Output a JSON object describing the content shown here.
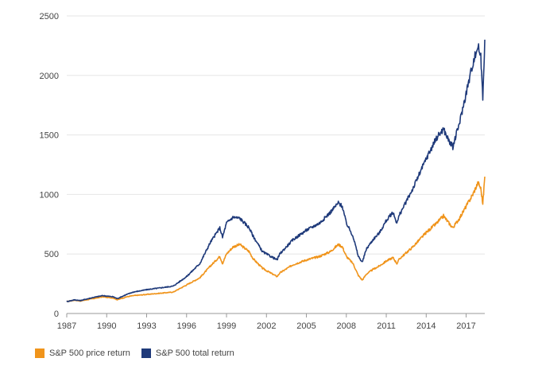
{
  "chart_data": {
    "type": "line",
    "title": "",
    "xlabel": "",
    "ylabel": "",
    "xlim": [
      1987,
      2018.4
    ],
    "ylim": [
      0,
      2500
    ],
    "grid": true,
    "legend_position": "bottom-left",
    "x_ticks": [
      "1987",
      "1990",
      "1993",
      "1996",
      "1999",
      "2002",
      "2005",
      "2008",
      "2011",
      "2014",
      "2017"
    ],
    "y_ticks": [
      "0",
      "500",
      "1000",
      "1500",
      "2000",
      "2500"
    ],
    "series": [
      {
        "name": "S&P 500 price return",
        "color": "#f0941b",
        "x": [
          1987.0,
          1987.6,
          1988.0,
          1989.0,
          1989.7,
          1990.5,
          1990.8,
          1991.5,
          1992.0,
          1993.0,
          1994.0,
          1995.0,
          1996.0,
          1997.0,
          1997.8,
          1998.5,
          1998.7,
          1999.0,
          1999.5,
          2000.0,
          2000.7,
          2001.0,
          2001.7,
          2002.0,
          2002.8,
          2003.0,
          2004.0,
          2005.0,
          2006.0,
          2006.8,
          2007.4,
          2007.7,
          2008.0,
          2008.5,
          2008.9,
          2009.2,
          2009.5,
          2010.0,
          2010.5,
          2011.0,
          2011.5,
          2011.8,
          2012.0,
          2013.0,
          2014.0,
          2014.8,
          2015.3,
          2015.7,
          2016.0,
          2016.5,
          2017.0,
          2017.5,
          2017.9,
          2018.1,
          2018.25,
          2018.4
        ],
        "y": [
          100,
          112,
          105,
          125,
          140,
          130,
          115,
          140,
          150,
          160,
          170,
          180,
          240,
          300,
          400,
          480,
          420,
          500,
          560,
          580,
          520,
          460,
          380,
          360,
          310,
          340,
          410,
          450,
          480,
          520,
          580,
          560,
          480,
          420,
          320,
          280,
          330,
          370,
          400,
          440,
          470,
          420,
          460,
          560,
          680,
          760,
          820,
          760,
          720,
          800,
          900,
          1000,
          1100,
          1050,
          920,
          1150
        ]
      },
      {
        "name": "S&P 500 total return",
        "color": "#1f3a7a",
        "x": [
          1987.0,
          1987.6,
          1988.0,
          1989.0,
          1989.7,
          1990.5,
          1990.8,
          1991.5,
          1992.0,
          1993.0,
          1994.0,
          1995.0,
          1996.0,
          1997.0,
          1997.8,
          1998.5,
          1998.7,
          1999.0,
          1999.5,
          2000.0,
          2000.7,
          2001.0,
          2001.7,
          2002.0,
          2002.8,
          2003.0,
          2004.0,
          2005.0,
          2006.0,
          2006.8,
          2007.4,
          2007.7,
          2008.0,
          2008.5,
          2008.9,
          2009.2,
          2009.5,
          2010.0,
          2010.5,
          2011.0,
          2011.5,
          2011.8,
          2012.0,
          2013.0,
          2014.0,
          2014.8,
          2015.3,
          2015.7,
          2016.0,
          2016.5,
          2017.0,
          2017.5,
          2017.9,
          2018.1,
          2018.25,
          2018.4
        ],
        "y": [
          100,
          115,
          108,
          135,
          150,
          140,
          125,
          160,
          180,
          200,
          215,
          230,
          310,
          420,
          600,
          720,
          640,
          760,
          810,
          800,
          720,
          650,
          520,
          500,
          450,
          500,
          620,
          700,
          760,
          850,
          930,
          900,
          760,
          650,
          480,
          430,
          540,
          620,
          680,
          780,
          850,
          760,
          830,
          1050,
          1300,
          1480,
          1550,
          1450,
          1400,
          1600,
          1850,
          2100,
          2250,
          2150,
          1820,
          2300
        ]
      }
    ]
  }
}
